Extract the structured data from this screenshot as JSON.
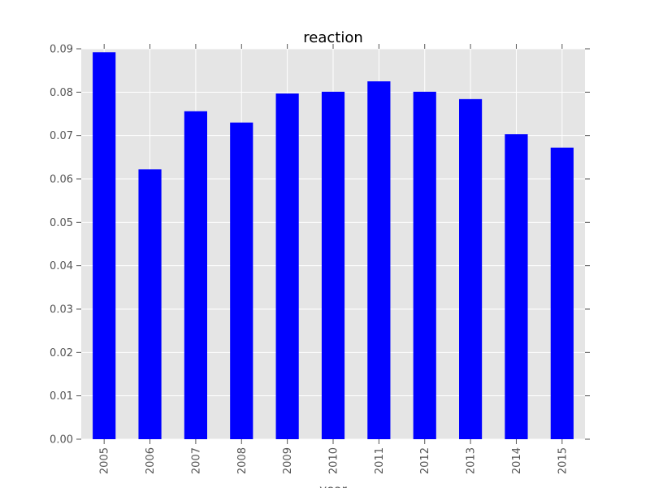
{
  "chart_data": {
    "type": "bar",
    "title": "reaction",
    "xlabel": "year",
    "ylabel": "",
    "categories": [
      "2005",
      "2006",
      "2007",
      "2008",
      "2009",
      "2010",
      "2011",
      "2012",
      "2013",
      "2014",
      "2015"
    ],
    "series": [
      {
        "values": [
          0.0892,
          0.0622,
          0.0756,
          0.073,
          0.0797,
          0.0801,
          0.0825,
          0.0801,
          0.0784,
          0.0703,
          0.0672
        ]
      }
    ],
    "ylim": [
      0,
      0.09
    ],
    "yticks": [
      "0.00",
      "0.01",
      "0.02",
      "0.03",
      "0.04",
      "0.05",
      "0.06",
      "0.07",
      "0.08",
      "0.09"
    ],
    "ytick_values": [
      0,
      0.01,
      0.02,
      0.03,
      0.04,
      0.05,
      0.06,
      0.07,
      0.08,
      0.09
    ],
    "grid": true,
    "legend": false,
    "colors": {
      "bar": "#0000ff",
      "plot_bg": "#e5e5e5",
      "grid": "#ffffff",
      "tick_text": "#555555"
    }
  }
}
